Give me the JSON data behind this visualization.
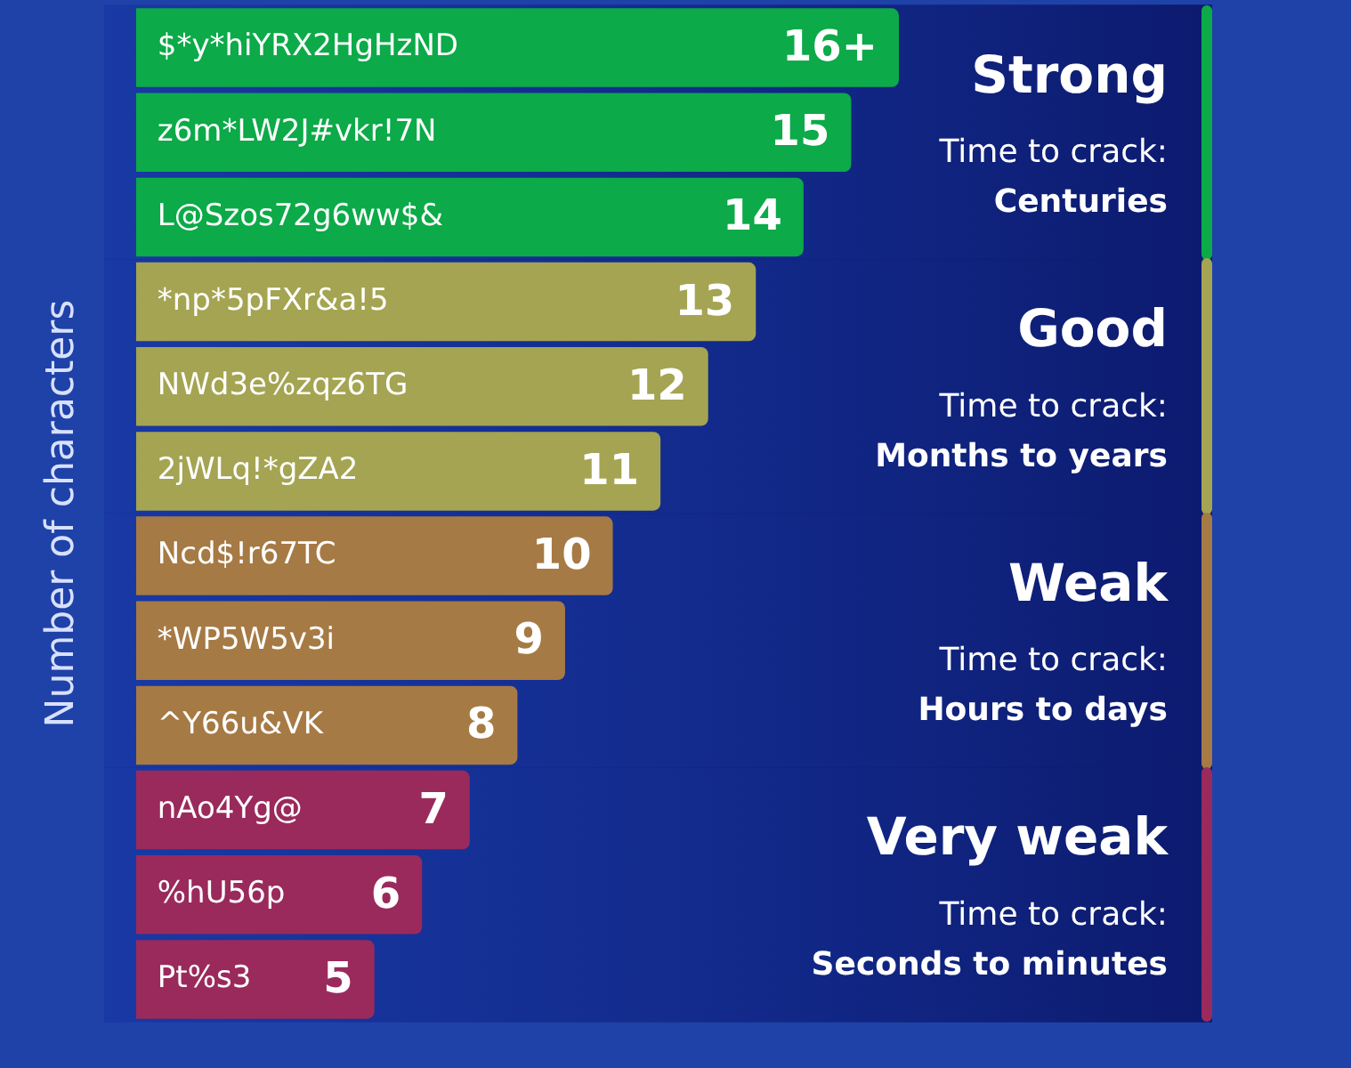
{
  "chart_data": {
    "type": "bar",
    "orientation": "horizontal",
    "ylabel": "Number of characters",
    "categories": [
      "$*y*hiYRX2HgHzND",
      "z6m*LW2J#vkr!7N",
      "L@Szos72g6ww$&",
      "*np*5pFXr&a!5",
      "NWd3e%zqz6TG",
      "2jWLq!*gZA2",
      "Ncd$!r67TC",
      "*WP5W5v3i",
      "^Y66u&VK",
      "nAo4Yg@",
      "%hU56p",
      "Pt%s3"
    ],
    "values": [
      16,
      15,
      14,
      13,
      12,
      11,
      10,
      9,
      8,
      7,
      6,
      5
    ],
    "value_labels": [
      "16+",
      "15",
      "14",
      "13",
      "12",
      "11",
      "10",
      "9",
      "8",
      "7",
      "6",
      "5"
    ],
    "colors": [
      "#0caa48",
      "#0caa48",
      "#0caa48",
      "#a4a452",
      "#a4a452",
      "#a4a452",
      "#a67a44",
      "#a67a44",
      "#a67a44",
      "#9a2a5c",
      "#9a2a5c",
      "#9a2a5c"
    ],
    "annotations": [
      "Strong",
      "Time to crack:",
      "Centuries",
      "Good",
      "Time to crack:",
      "Months to years",
      "Weak",
      "Time to crack:",
      "Hours to days",
      "Very weak",
      "Time to crack:",
      "Seconds to minutes"
    ]
  }
}
